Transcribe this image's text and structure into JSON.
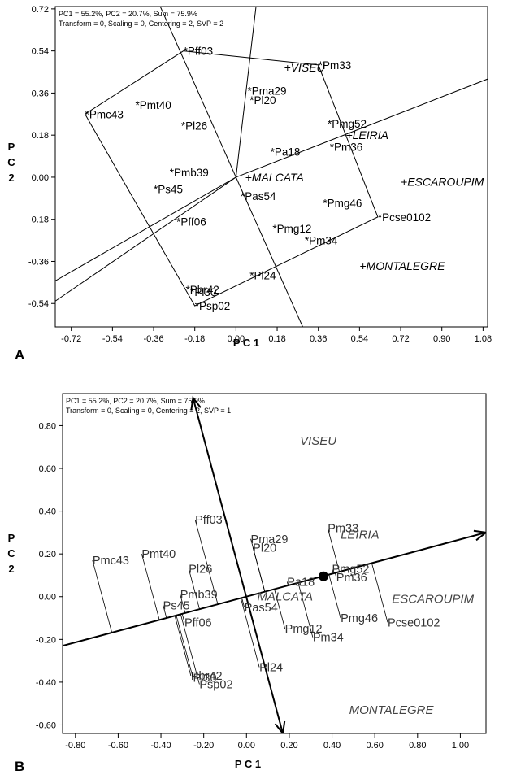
{
  "chart_data": [
    {
      "panel_label": "A",
      "type": "scatter",
      "info_line1": "PC1 = 55.2%, PC2 = 20.7%, Sum = 75.9%",
      "info_line2": "Transform = 0, Scaling = 0, Centering = 2, SVP = 2",
      "xlabel": "P C 1",
      "ylabel": "P\nC\n2",
      "xlim": [
        -0.79,
        1.1
      ],
      "ylim": [
        -0.64,
        0.73
      ],
      "x_ticks": [
        "-0.72",
        "-0.54",
        "-0.36",
        "-0.18",
        "0.00",
        "0.18",
        "0.36",
        "0.54",
        "0.72",
        "0.90",
        "1.08"
      ],
      "y_ticks": [
        "0.72",
        "0.54",
        "0.36",
        "0.18",
        "0.00",
        "-0.18",
        "-0.36",
        "-0.54"
      ],
      "genotypes": [
        {
          "name": "Pff03",
          "x": -0.23,
          "y": 0.54
        },
        {
          "name": "Pm33",
          "x": 0.36,
          "y": 0.48
        },
        {
          "name": "Pma29",
          "x": 0.05,
          "y": 0.37
        },
        {
          "name": "Pl20",
          "x": 0.06,
          "y": 0.33
        },
        {
          "name": "Pmc43",
          "x": -0.66,
          "y": 0.27
        },
        {
          "name": "Pmt40",
          "x": -0.44,
          "y": 0.31
        },
        {
          "name": "Pl26",
          "x": -0.24,
          "y": 0.22
        },
        {
          "name": "Pmg52",
          "x": 0.4,
          "y": 0.23
        },
        {
          "name": "Pm36",
          "x": 0.41,
          "y": 0.13
        },
        {
          "name": "Pa18",
          "x": 0.15,
          "y": 0.11
        },
        {
          "name": "Pmb39",
          "x": -0.29,
          "y": 0.02
        },
        {
          "name": "Ps45",
          "x": -0.36,
          "y": -0.05
        },
        {
          "name": "Pas54",
          "x": 0.02,
          "y": -0.08
        },
        {
          "name": "Pmg46",
          "x": 0.38,
          "y": -0.11
        },
        {
          "name": "Pcse0102",
          "x": 0.62,
          "y": -0.17
        },
        {
          "name": "Pff06",
          "x": -0.26,
          "y": -0.19
        },
        {
          "name": "Pmg12",
          "x": 0.16,
          "y": -0.22
        },
        {
          "name": "Pm34",
          "x": 0.3,
          "y": -0.27
        },
        {
          "name": "Pl24",
          "x": 0.06,
          "y": -0.42
        },
        {
          "name": "Pbr42",
          "x": -0.22,
          "y": -0.48
        },
        {
          "name": "Pl30",
          "x": -0.2,
          "y": -0.49
        },
        {
          "name": "Psp02",
          "x": -0.18,
          "y": -0.55
        }
      ],
      "environments": [
        {
          "name": "VISEU",
          "x": 0.21,
          "y": 0.47
        },
        {
          "name": "LEIRIA",
          "x": 0.48,
          "y": 0.18
        },
        {
          "name": "MALCATA",
          "x": 0.04,
          "y": 0.0
        },
        {
          "name": "ESCAROUPIM",
          "x": 0.72,
          "y": -0.02
        },
        {
          "name": "MONTALEGRE",
          "x": 0.54,
          "y": -0.38
        }
      ],
      "hull": [
        [
          -0.66,
          0.27
        ],
        [
          -0.23,
          0.54
        ],
        [
          0.36,
          0.48
        ],
        [
          0.62,
          -0.17
        ],
        [
          -0.18,
          -0.55
        ],
        [
          -0.66,
          0.27
        ]
      ],
      "rays": [
        [
          -0.82,
          -0.46
        ],
        [
          -0.82,
          -0.55
        ],
        [
          1.1,
          0.42
        ],
        [
          0.09,
          0.75
        ],
        [
          0.31,
          -0.68
        ],
        [
          -0.34,
          0.75
        ]
      ]
    },
    {
      "panel_label": "B",
      "type": "scatter",
      "info_line1": "PC1 = 55.2%, PC2 = 20.7%, Sum = 75.9%",
      "info_line2": "Transform = 0, Scaling = 0, Centering = 2, SVP = 1",
      "xlabel": "P C 1",
      "ylabel": "P\nC\n2",
      "xlim": [
        -0.86,
        1.12
      ],
      "ylim": [
        -0.64,
        0.95
      ],
      "x_ticks": [
        "-0.80",
        "-0.60",
        "-0.40",
        "-0.20",
        "0.00",
        "0.20",
        "0.40",
        "0.60",
        "0.80",
        "1.00"
      ],
      "y_ticks": [
        "0.80",
        "0.60",
        "0.40",
        "0.20",
        "0.00",
        "-0.20",
        "-0.40",
        "-0.60"
      ],
      "aec_axis": {
        "start": [
          -0.86,
          -0.23
        ],
        "end": [
          1.12,
          0.3
        ],
        "mean_env": [
          0.36,
          0.095
        ]
      },
      "aec_ordinate": {
        "start": [
          -0.25,
          0.93
        ],
        "end": [
          0.17,
          -0.64
        ]
      },
      "genotypes": [
        {
          "name": "Pff03",
          "x": -0.24,
          "y": 0.36
        },
        {
          "name": "Pm33",
          "x": 0.38,
          "y": 0.32
        },
        {
          "name": "Pma29",
          "x": 0.02,
          "y": 0.27
        },
        {
          "name": "Pl20",
          "x": 0.03,
          "y": 0.23
        },
        {
          "name": "Pmc43",
          "x": -0.72,
          "y": 0.17
        },
        {
          "name": "Pmt40",
          "x": -0.49,
          "y": 0.2
        },
        {
          "name": "Pl26",
          "x": -0.27,
          "y": 0.13
        },
        {
          "name": "Pmg52",
          "x": 0.4,
          "y": 0.13
        },
        {
          "name": "Pm36",
          "x": 0.42,
          "y": 0.09
        },
        {
          "name": "Pa18",
          "x": 0.19,
          "y": 0.07
        },
        {
          "name": "Pmb39",
          "x": -0.31,
          "y": 0.01
        },
        {
          "name": "Ps45",
          "x": -0.39,
          "y": -0.04
        },
        {
          "name": "Pas54",
          "x": -0.01,
          "y": -0.05
        },
        {
          "name": "Pmg46",
          "x": 0.44,
          "y": -0.1
        },
        {
          "name": "Pcse0102",
          "x": 0.66,
          "y": -0.12
        },
        {
          "name": "Pff06",
          "x": -0.29,
          "y": -0.12
        },
        {
          "name": "Pmg12",
          "x": 0.18,
          "y": -0.15
        },
        {
          "name": "Pm34",
          "x": 0.31,
          "y": -0.19
        },
        {
          "name": "Pl24",
          "x": 0.06,
          "y": -0.33
        },
        {
          "name": "Pbr42",
          "x": -0.26,
          "y": -0.37
        },
        {
          "name": "Pl30",
          "x": -0.25,
          "y": -0.38
        },
        {
          "name": "Psp02",
          "x": -0.22,
          "y": -0.41
        }
      ],
      "environments": [
        {
          "name": "VISEU",
          "x": 0.25,
          "y": 0.73
        },
        {
          "name": "LEIRIA",
          "x": 0.44,
          "y": 0.29
        },
        {
          "name": "MALCATA",
          "x": 0.05,
          "y": 0.0
        },
        {
          "name": "ESCAROUPIM",
          "x": 0.68,
          "y": -0.01
        },
        {
          "name": "MONTALEGRE",
          "x": 0.48,
          "y": -0.53
        }
      ]
    }
  ]
}
